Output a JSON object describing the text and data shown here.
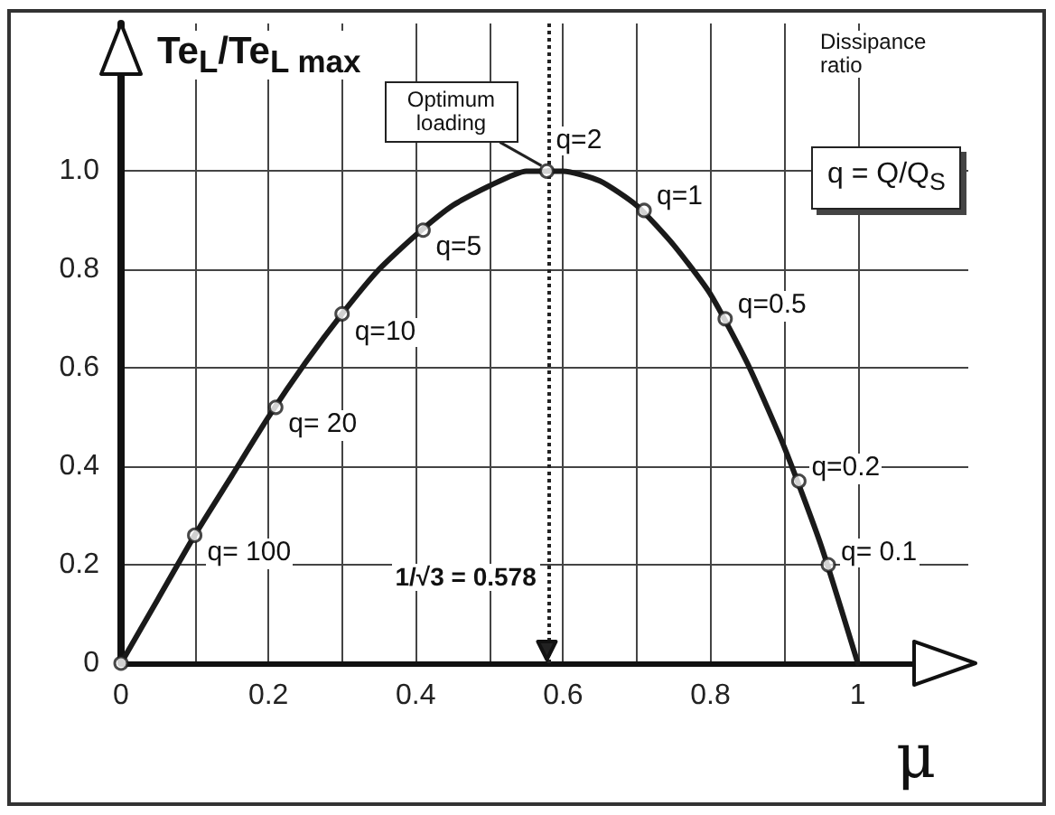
{
  "chart_data": {
    "type": "line",
    "xlabel": "μ",
    "ylabel": "Te$_{L}$/Te$_{L max}$",
    "xlim": [
      0,
      1.15
    ],
    "ylim": [
      0,
      1.3
    ],
    "xticks": [
      0,
      {
        "value": 0.1,
        "label": null
      },
      0.2,
      {
        "value": 0.3,
        "label": null
      },
      0.4,
      {
        "value": 0.5,
        "label": null
      },
      0.6,
      {
        "value": 0.7,
        "label": null
      },
      0.8,
      {
        "value": 0.9,
        "label": null
      },
      1
    ],
    "yticks": [
      0,
      0.2,
      0.4,
      0.6,
      0.8,
      {
        "value": 1,
        "label": "1.0"
      }
    ],
    "grid": true,
    "marker": "circle",
    "series": [
      {
        "color": "#1a1a1a",
        "marker": "none",
        "x": [
          0,
          0.05,
          0.1,
          0.15,
          0.2,
          0.25,
          0.3,
          0.35,
          0.4,
          0.45,
          0.5,
          0.55,
          0.578,
          0.6,
          0.65,
          0.7,
          0.75,
          0.8,
          0.85,
          0.9,
          0.95,
          1
        ],
        "values": [
          0,
          0.13,
          0.26,
          0.38,
          0.5,
          0.61,
          0.71,
          0.8,
          0.87,
          0.93,
          0.97,
          1,
          1,
          1,
          0.98,
          0.93,
          0.85,
          0.75,
          0.61,
          0.44,
          0.24,
          0
        ]
      },
      {
        "type": "scatter",
        "color": "#ffffff",
        "x": [
          0,
          0.1,
          0.21,
          0.3,
          0.41,
          0.578,
          0.71,
          0.82,
          0.92,
          0.96
        ],
        "values": [
          0,
          0.26,
          0.52,
          0.71,
          0.88,
          1,
          0.92,
          0.7,
          0.37,
          0.2
        ]
      }
    ],
    "ref_lines": [
      {
        "axis": "x",
        "value": 0.578,
        "label": "1/√3 = 0.578",
        "line_style": "dotted",
        "color": "#222222"
      }
    ],
    "annotations": [
      {
        "text": "Optimum loading",
        "x": 0.578,
        "y": 1
      },
      {
        "text": "q= 100",
        "x": 0.1,
        "y": 0.26
      },
      {
        "text": "q= 20",
        "x": 0.21,
        "y": 0.52
      },
      {
        "text": "q=10",
        "x": 0.3,
        "y": 0.71
      },
      {
        "text": "q=5",
        "x": 0.41,
        "y": 0.88
      },
      {
        "text": "q=2",
        "x": 0.578,
        "y": 1
      },
      {
        "text": "q=1",
        "x": 0.71,
        "y": 0.92
      },
      {
        "text": "q=0.5",
        "x": 0.82,
        "y": 0.7
      },
      {
        "text": "q=0.2",
        "x": 0.92,
        "y": 0.37
      },
      {
        "text": "q= 0.1",
        "x": 0.96,
        "y": 0.2
      },
      "Dissipance ratio",
      "q = Q/Q$_{S}$"
    ]
  }
}
